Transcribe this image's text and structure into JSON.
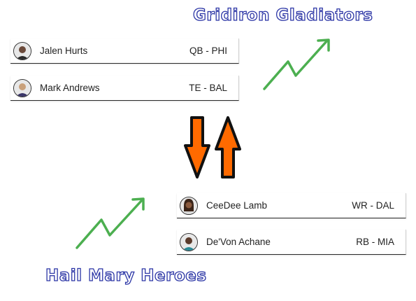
{
  "teams": {
    "top": "Gridiron Gladiators",
    "bottom": "Hail Mary Heroes"
  },
  "top_players": [
    {
      "name": "Jalen Hurts",
      "position": "QB - PHI",
      "avatar_color": "#6b4a3a"
    },
    {
      "name": "Mark Andrews",
      "position": "TE - BAL",
      "avatar_color": "#3a3568"
    }
  ],
  "bottom_players": [
    {
      "name": "CeeDee Lamb",
      "position": "WR - DAL",
      "avatar_color": "#5a3d2e"
    },
    {
      "name": "De'Von Achane",
      "position": "RB - MIA",
      "avatar_color": "#2a8a96"
    }
  ],
  "colors": {
    "title_outline": "#2c36a6",
    "trend_arrow": "#4caf50",
    "swap_arrow": "#ff6a00"
  },
  "icons": {
    "trend": "trending-up-icon",
    "swap_down": "arrow-down-icon",
    "swap_up": "arrow-up-icon"
  }
}
